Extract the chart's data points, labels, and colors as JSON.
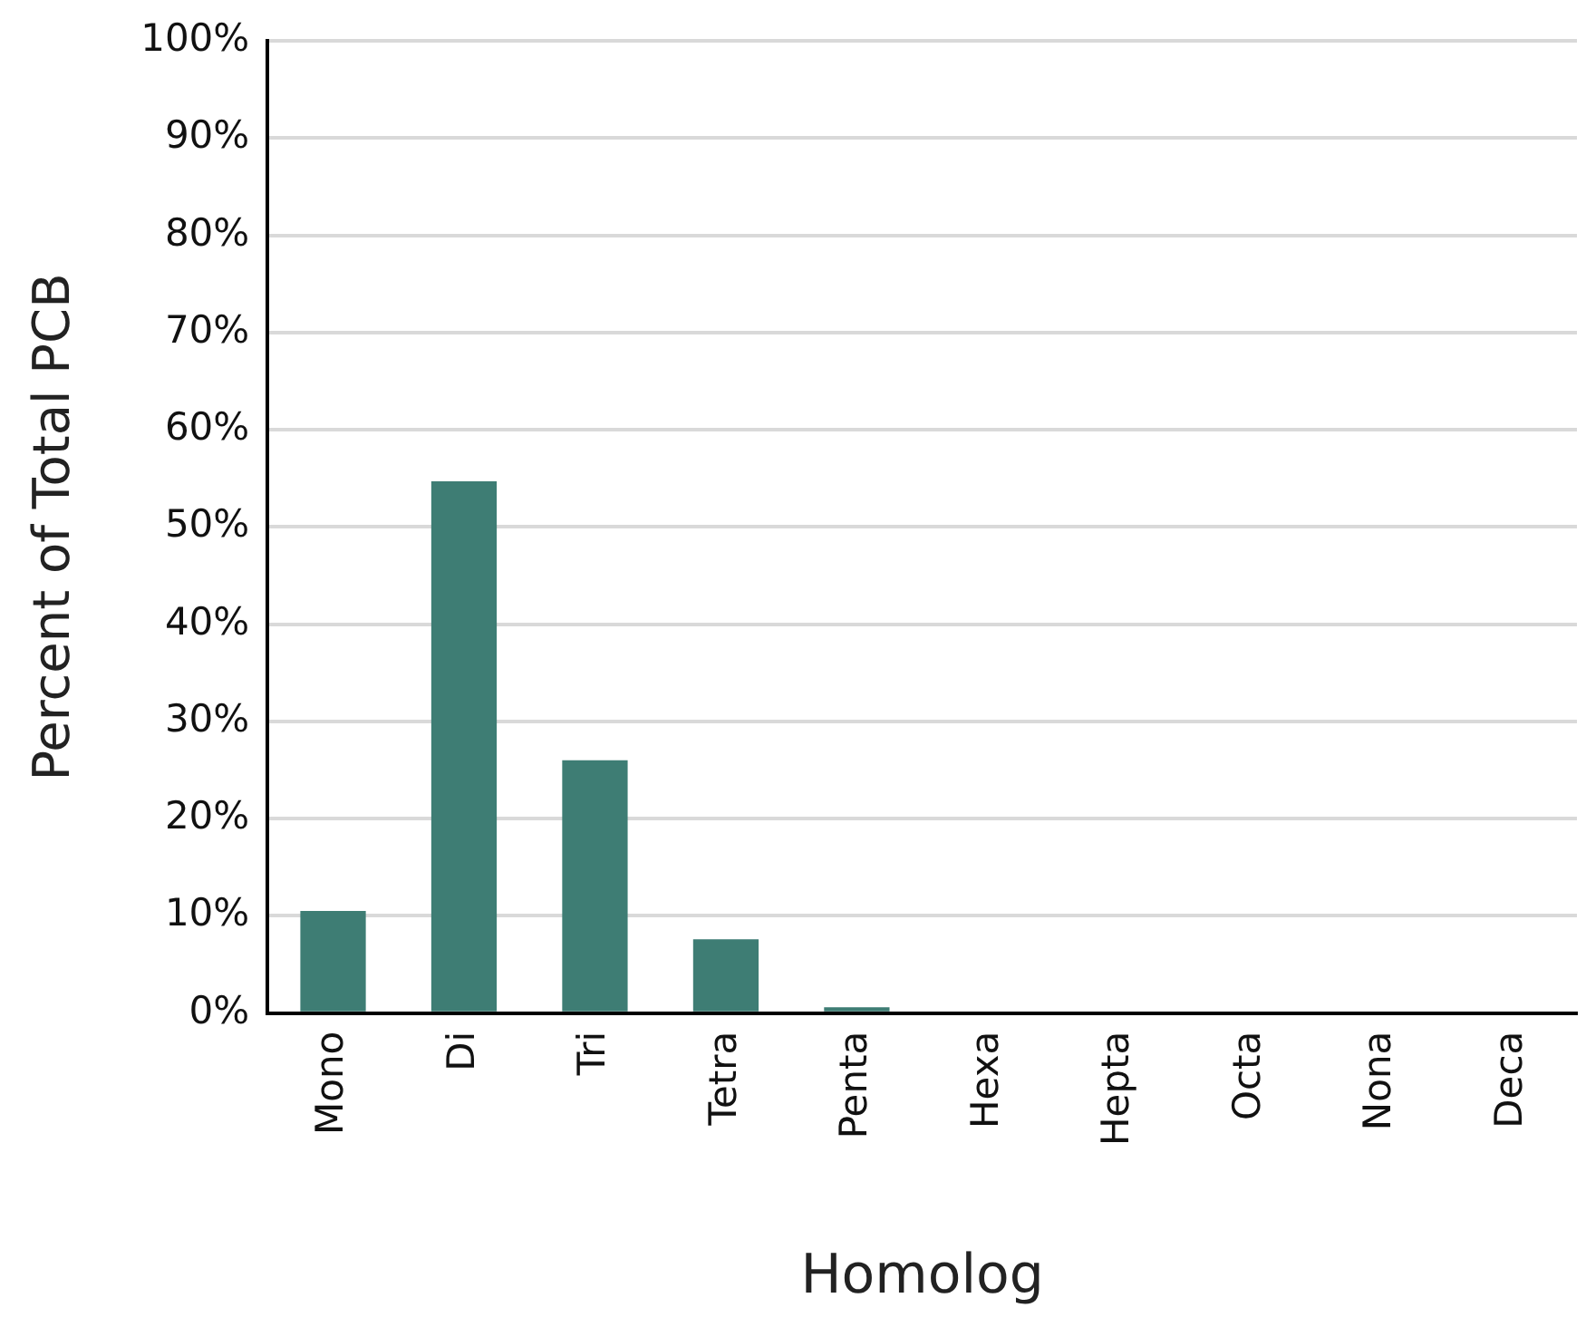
{
  "chart_data": {
    "type": "bar",
    "xlabel": "Homolog",
    "ylabel": "Percent of Total PCB",
    "categories": [
      "Mono",
      "Di",
      "Tri",
      "Tetra",
      "Penta",
      "Hexa",
      "Hepta",
      "Octa",
      "Nona",
      "Deca"
    ],
    "values": [
      10.5,
      54.7,
      26,
      7.6,
      0.6,
      0,
      0,
      0,
      0,
      0
    ],
    "color": "#3e7d74",
    "ylim": [
      0,
      100
    ],
    "yticks": [
      {
        "value": 0,
        "label": "0%"
      },
      {
        "value": 10,
        "label": "10%"
      },
      {
        "value": 20,
        "label": "20%"
      },
      {
        "value": 30,
        "label": "30%"
      },
      {
        "value": 40,
        "label": "40%"
      },
      {
        "value": 50,
        "label": "50%"
      },
      {
        "value": 60,
        "label": "60%"
      },
      {
        "value": 70,
        "label": "70%"
      },
      {
        "value": 80,
        "label": "80%"
      },
      {
        "value": 90,
        "label": "90%"
      },
      {
        "value": 100,
        "label": "100%"
      }
    ],
    "grid": "y",
    "legend": false
  }
}
